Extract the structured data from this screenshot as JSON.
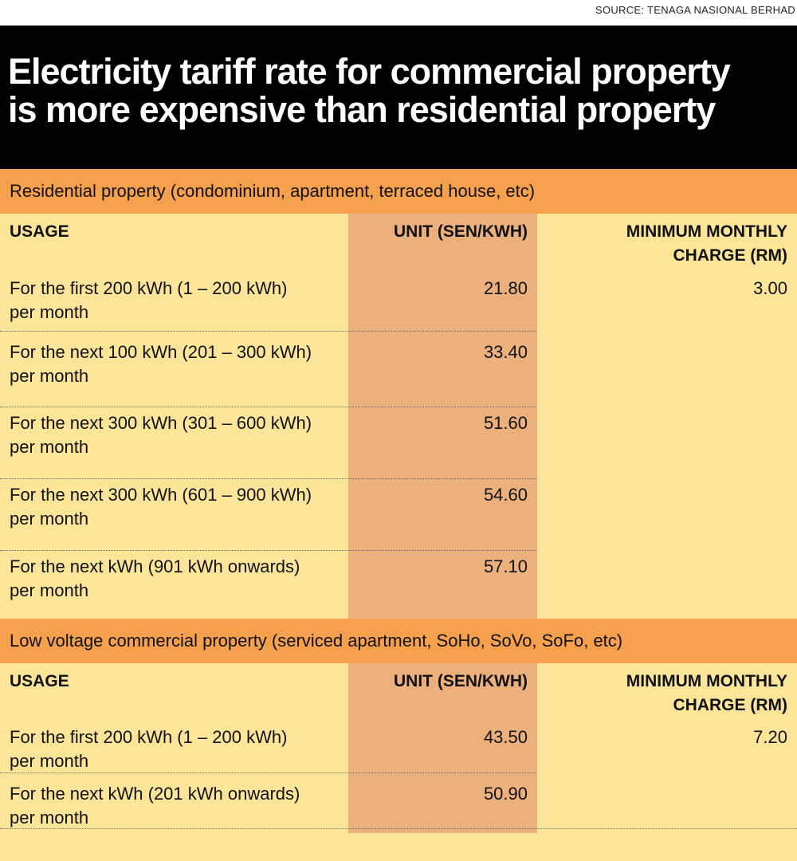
{
  "source": "SOURCE: TENAGA NASIONAL BERHAD",
  "title_line1": "Electricity tariff rate for commercial property",
  "title_line2": "is more expensive than residential property",
  "colors": {
    "header_bg": "#000000",
    "section_bar": "#f5a04c",
    "body_bg": "#fce598",
    "unit_column_bg": "#ecb07d"
  },
  "chart_data": {
    "type": "table",
    "title": "Electricity tariff rate for commercial property is more expensive than residential property",
    "source": "SOURCE: TENAGA NASIONAL BERHAD",
    "sections": [
      {
        "label": "Residential property (condominium, apartment, terraced house, etc)",
        "headers": {
          "usage": "USAGE",
          "unit": "UNIT (SEN/KWH)",
          "charge_line1": "MINIMUM MONTHLY",
          "charge_line2": "CHARGE (RM)"
        },
        "rows": [
          {
            "usage_line1": "For the first 200 kWh (1 – 200 kWh)",
            "usage_line2": "per month",
            "unit": "21.80",
            "charge": "3.00"
          },
          {
            "usage_line1": "For the next 100 kWh (201 – 300 kWh)",
            "usage_line2": "per month",
            "unit": "33.40",
            "charge": ""
          },
          {
            "usage_line1": "For the next 300 kWh (301 – 600 kWh)",
            "usage_line2": "per month",
            "unit": "51.60",
            "charge": ""
          },
          {
            "usage_line1": "For the next 300 kWh (601 – 900 kWh)",
            "usage_line2": "per month",
            "unit": "54.60",
            "charge": ""
          },
          {
            "usage_line1": "For the next kWh (901 kWh onwards)",
            "usage_line2": "per month",
            "unit": "57.10",
            "charge": ""
          }
        ]
      },
      {
        "label": "Low voltage commercial property (serviced apartment, SoHo, SoVo, SoFo, etc)",
        "headers": {
          "usage": "USAGE",
          "unit": "UNIT (SEN/KWH)",
          "charge_line1": "MINIMUM MONTHLY",
          "charge_line2": "CHARGE (RM)"
        },
        "rows": [
          {
            "usage_line1": "For the first 200 kWh (1 – 200 kWh)",
            "usage_line2": "per month",
            "unit": "43.50",
            "charge": "7.20"
          },
          {
            "usage_line1": "For the next kWh (201 kWh onwards)",
            "usage_line2": "per month",
            "unit": "50.90",
            "charge": ""
          }
        ]
      }
    ]
  }
}
